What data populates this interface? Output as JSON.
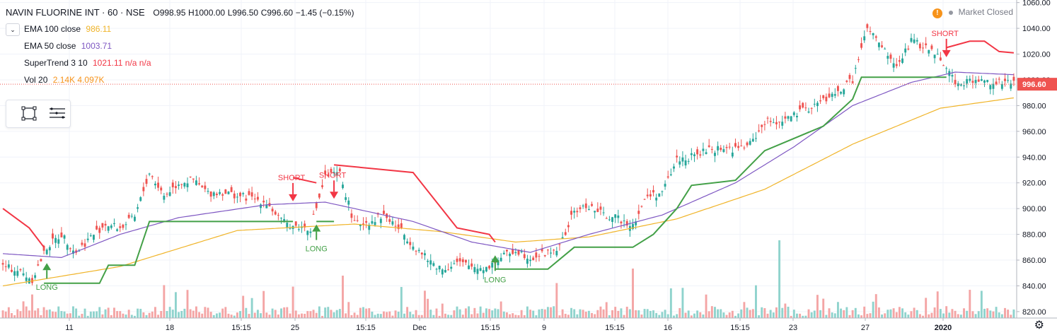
{
  "header": {
    "symbol": "NAVIN FLUORINE INT · 60 · NSE",
    "open": "O998.95",
    "high": "H1000.00",
    "low": "L996.50",
    "close": "C996.60",
    "change": "−1.45 (−0.15%)"
  },
  "indicators": [
    {
      "name": "EMA 100 close",
      "value": "986.11",
      "color": "#f0b429"
    },
    {
      "name": "EMA 50 close",
      "value": "1003.71",
      "color": "#7e57c2"
    },
    {
      "name": "SuperTrend 3 10",
      "value": "1021.11  n/a  n/a",
      "color": "#f23645"
    },
    {
      "name": "Vol 20",
      "value": "2.14K  4.097K",
      "color": "#f7931a"
    }
  ],
  "status": {
    "label": "Market Closed",
    "icon": "warning-icon"
  },
  "colors": {
    "up": "#26a69a",
    "down": "#ef5350",
    "ema100": "#f0b429",
    "ema50": "#7e57c2",
    "st_up": "#43a047",
    "st_down": "#f23645",
    "vol_up": "#8fd3cd",
    "vol_down": "#f4a5a5",
    "price_tag": "#ef5350"
  },
  "chart_data": {
    "type": "candlestick",
    "y_axis": {
      "ticks": [
        "1060.00",
        "1040.00",
        "1020.00",
        "1000.00",
        "980.00",
        "960.00",
        "940.00",
        "920.00",
        "900.00",
        "880.00",
        "860.00",
        "840.00",
        "820.00"
      ],
      "range": [
        815,
        1062
      ]
    },
    "x_axis": {
      "ticks": [
        "11",
        "18",
        "15:15",
        "25",
        "15:15",
        "Dec",
        "15:15",
        "9",
        "15:15",
        "16",
        "15:15",
        "23",
        "27",
        "2020"
      ]
    },
    "last_price": {
      "value": 996.6,
      "label": "996.60"
    },
    "close_anchors": [
      [
        0,
        855
      ],
      [
        5,
        852
      ],
      [
        10,
        845
      ],
      [
        15,
        870
      ],
      [
        20,
        880
      ],
      [
        25,
        866
      ],
      [
        30,
        878
      ],
      [
        35,
        888
      ],
      [
        40,
        885
      ],
      [
        45,
        893
      ],
      [
        50,
        928
      ],
      [
        55,
        910
      ],
      [
        60,
        920
      ],
      [
        65,
        922
      ],
      [
        70,
        912
      ],
      [
        75,
        913
      ],
      [
        80,
        910
      ],
      [
        85,
        908
      ],
      [
        90,
        905
      ],
      [
        95,
        890
      ],
      [
        100,
        886
      ],
      [
        105,
        885
      ],
      [
        110,
        925
      ],
      [
        115,
        927
      ],
      [
        120,
        888
      ],
      [
        125,
        890
      ],
      [
        130,
        895
      ],
      [
        135,
        885
      ],
      [
        140,
        872
      ],
      [
        145,
        860
      ],
      [
        150,
        853
      ],
      [
        155,
        858
      ],
      [
        160,
        855
      ],
      [
        165,
        854
      ],
      [
        170,
        862
      ],
      [
        175,
        868
      ],
      [
        180,
        862
      ],
      [
        185,
        865
      ],
      [
        190,
        870
      ],
      [
        195,
        898
      ],
      [
        200,
        902
      ],
      [
        205,
        895
      ],
      [
        210,
        892
      ],
      [
        215,
        888
      ],
      [
        220,
        910
      ],
      [
        225,
        912
      ],
      [
        230,
        938
      ],
      [
        235,
        940
      ],
      [
        240,
        945
      ],
      [
        245,
        947
      ],
      [
        250,
        946
      ],
      [
        255,
        950
      ],
      [
        260,
        967
      ],
      [
        265,
        968
      ],
      [
        270,
        972
      ],
      [
        275,
        978
      ],
      [
        280,
        984
      ],
      [
        285,
        990
      ],
      [
        290,
        1000
      ],
      [
        295,
        1040
      ],
      [
        300,
        1025
      ],
      [
        305,
        1010
      ],
      [
        310,
        1030
      ],
      [
        315,
        1025
      ],
      [
        320,
        1018
      ],
      [
        325,
        998
      ],
      [
        330,
        999
      ],
      [
        335,
        999
      ],
      [
        340,
        998
      ],
      [
        345,
        997
      ]
    ],
    "candle_count": 346,
    "ema100_anchors": [
      [
        0,
        840
      ],
      [
        40,
        855
      ],
      [
        80,
        883
      ],
      [
        120,
        888
      ],
      [
        150,
        882
      ],
      [
        175,
        874
      ],
      [
        200,
        878
      ],
      [
        230,
        892
      ],
      [
        260,
        915
      ],
      [
        290,
        950
      ],
      [
        320,
        978
      ],
      [
        345,
        986
      ]
    ],
    "ema50_anchors": [
      [
        0,
        865
      ],
      [
        20,
        862
      ],
      [
        40,
        880
      ],
      [
        60,
        893
      ],
      [
        90,
        903
      ],
      [
        110,
        905
      ],
      [
        140,
        890
      ],
      [
        160,
        874
      ],
      [
        180,
        866
      ],
      [
        200,
        880
      ],
      [
        225,
        895
      ],
      [
        250,
        920
      ],
      [
        270,
        948
      ],
      [
        290,
        980
      ],
      [
        310,
        998
      ],
      [
        325,
        1006
      ],
      [
        345,
        1004
      ]
    ],
    "supertrend": [
      {
        "dir": "down",
        "points": [
          [
            0,
            900
          ],
          [
            9,
            885
          ],
          [
            14,
            870
          ]
        ]
      },
      {
        "dir": "up",
        "points": [
          [
            14,
            842
          ],
          [
            33,
            842
          ],
          [
            36,
            856
          ],
          [
            45,
            856
          ],
          [
            50,
            890
          ],
          [
            99,
            890
          ]
        ]
      },
      {
        "dir": "down",
        "points": [
          [
            99,
            924
          ],
          [
            107,
            920
          ]
        ]
      },
      {
        "dir": "up",
        "points": [
          [
            107,
            890
          ],
          [
            113,
            890
          ]
        ]
      },
      {
        "dir": "down",
        "points": [
          [
            113,
            934
          ],
          [
            140,
            928
          ],
          [
            155,
            885
          ],
          [
            166,
            880
          ],
          [
            168,
            874
          ]
        ]
      },
      {
        "dir": "up",
        "points": [
          [
            168,
            853
          ],
          [
            186,
            853
          ],
          [
            195,
            870
          ],
          [
            215,
            870
          ],
          [
            222,
            880
          ],
          [
            230,
            900
          ],
          [
            235,
            918
          ],
          [
            250,
            922
          ],
          [
            260,
            945
          ],
          [
            280,
            964
          ],
          [
            290,
            985
          ],
          [
            293,
            1002
          ],
          [
            322,
            1002
          ]
        ]
      },
      {
        "dir": "down",
        "points": [
          [
            322,
            1025
          ],
          [
            330,
            1030
          ],
          [
            335,
            1030
          ],
          [
            340,
            1022
          ],
          [
            345,
            1021
          ]
        ]
      }
    ],
    "signals": [
      {
        "label": "LONG",
        "index": 15,
        "dir": "up",
        "price": 850
      },
      {
        "label": "SHORT",
        "index": 99,
        "dir": "down",
        "price": 910
      },
      {
        "label": "LONG",
        "index": 107,
        "dir": "up",
        "price": 880
      },
      {
        "label": "SHORT",
        "index": 113,
        "dir": "down",
        "price": 912
      },
      {
        "label": "LONG",
        "index": 168,
        "dir": "up",
        "price": 856
      },
      {
        "label": "SHORT",
        "index": 322,
        "dir": "down",
        "price": 1022
      }
    ]
  }
}
